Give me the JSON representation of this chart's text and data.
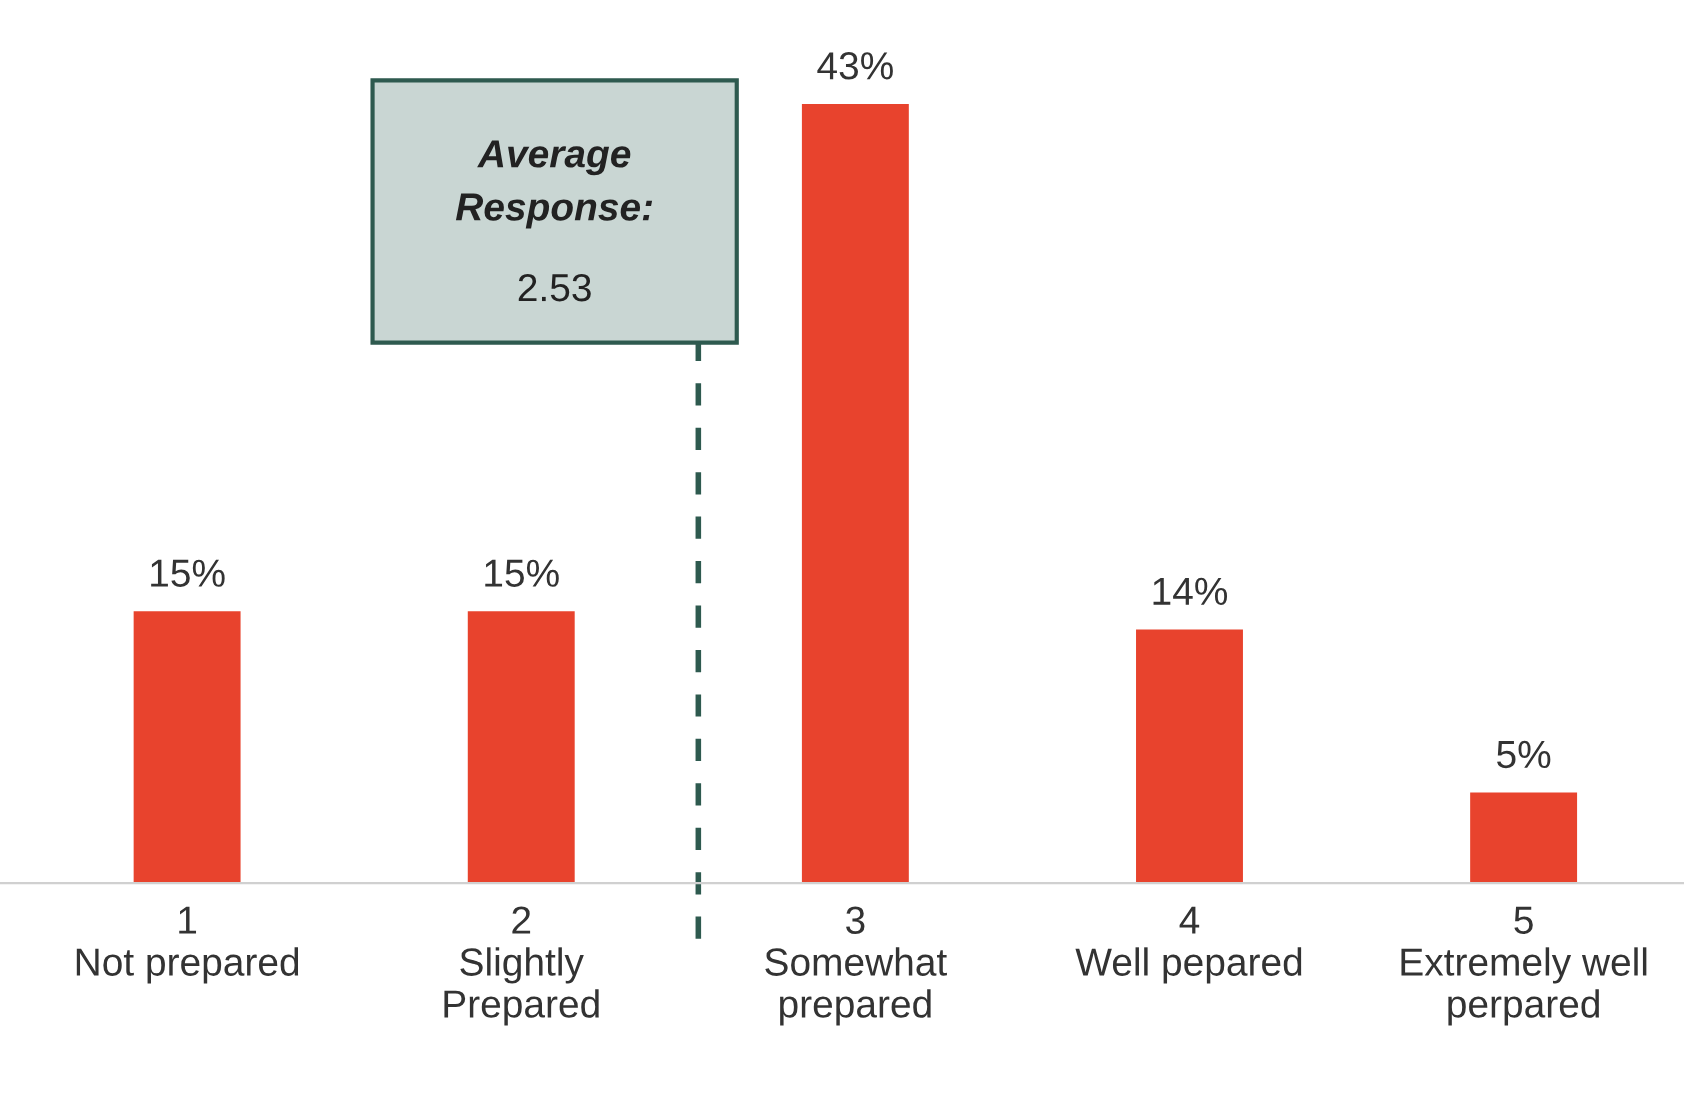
{
  "chart_data": {
    "type": "bar",
    "x": [
      1,
      2,
      3,
      4,
      5
    ],
    "xlim": [
      0.44,
      5.48
    ],
    "xticks": [
      {
        "value": 1,
        "label": "1\nNot prepared"
      },
      {
        "value": 2,
        "label": "2\nSlightly\nPrepared"
      },
      {
        "value": 3,
        "label": "3\nSomewhat\nprepared"
      },
      {
        "value": 4,
        "label": "4\nWell pepared"
      },
      {
        "value": 5,
        "label": "5\nExtremely well\nperpared"
      }
    ],
    "values": [
      15,
      15,
      43,
      14,
      5
    ],
    "value_labels": [
      "15%",
      "15%",
      "43%",
      "14%",
      "5%"
    ],
    "color": "#e8432d",
    "grid": false,
    "legend": false,
    "ref_lines": [
      {
        "axis": "x",
        "value": 2.53,
        "label": "Average Response:\n2.53",
        "color": "#2e5a4f",
        "line_style": "dashed"
      }
    ]
  }
}
